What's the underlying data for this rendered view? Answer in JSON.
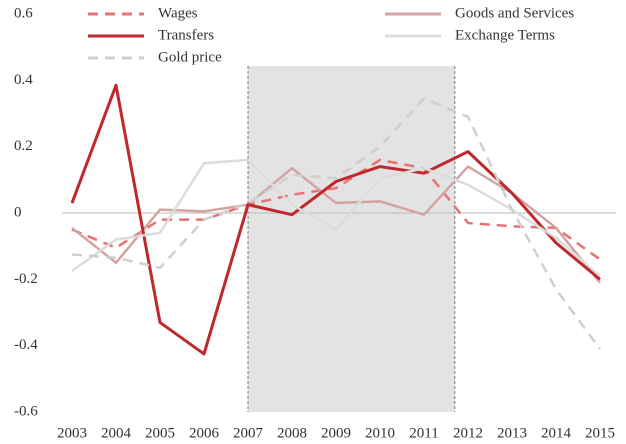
{
  "chart_data": {
    "type": "line",
    "x": [
      2003,
      2004,
      2005,
      2006,
      2007,
      2008,
      2009,
      2010,
      2011,
      2012,
      2013,
      2014,
      2015
    ],
    "xlim": [
      2003,
      2015
    ],
    "xticks": [
      2003,
      2004,
      2005,
      2006,
      2007,
      2008,
      2009,
      2010,
      2011,
      2012,
      2013,
      2014,
      2015
    ],
    "ylim": [
      -0.6,
      0.6
    ],
    "yticks": [
      -0.6,
      -0.4,
      -0.2,
      0,
      0.2,
      0.4,
      0.6
    ],
    "shade_x": [
      2007,
      2011.7
    ],
    "series": [
      {
        "name": "Wages",
        "color": "#e57373",
        "dash": true,
        "values": [
          -0.05,
          -0.105,
          -0.02,
          -0.02,
          0.025,
          0.055,
          0.075,
          0.16,
          0.135,
          -0.03,
          -0.04,
          -0.045,
          -0.14
        ]
      },
      {
        "name": "Goods and Services",
        "color": "#d4a3a3",
        "dash": false,
        "values": [
          -0.045,
          -0.15,
          0.01,
          0.005,
          0.025,
          0.135,
          0.03,
          0.035,
          -0.005,
          0.14,
          0.06,
          -0.045,
          -0.21
        ]
      },
      {
        "name": "Transfers",
        "color": "#c0282d",
        "dash": false,
        "values": [
          0.03,
          0.385,
          -0.33,
          -0.425,
          0.025,
          -0.005,
          0.095,
          0.14,
          0.12,
          0.185,
          0.06,
          -0.09,
          -0.2
        ]
      },
      {
        "name": "Exchange Terms",
        "color": "#dcdcdc",
        "dash": false,
        "values": [
          -0.175,
          -0.08,
          -0.06,
          0.15,
          0.16,
          0.025,
          -0.05,
          0.105,
          0.135,
          0.085,
          0.01,
          -0.075,
          -0.19
        ]
      },
      {
        "name": "Gold price",
        "color": "#cfcfcf",
        "dash": true,
        "values": [
          -0.125,
          -0.135,
          -0.165,
          -0.02,
          0.03,
          0.115,
          0.105,
          0.2,
          0.345,
          0.29,
          0.01,
          -0.23,
          -0.41
        ]
      }
    ]
  }
}
